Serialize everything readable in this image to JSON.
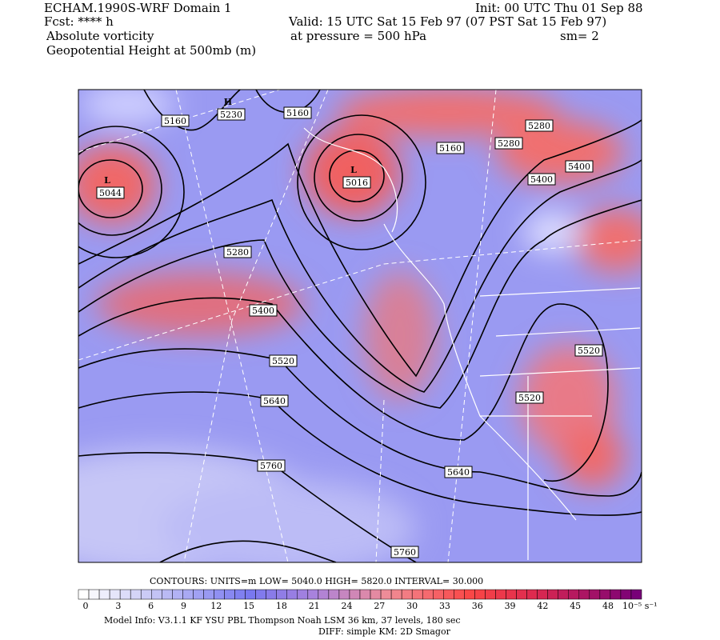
{
  "header": {
    "left": [
      "ECHAM.1990S-WRF Domain 1",
      "Fcst: **** h",
      "Absolute vorticity",
      "Geopotential Height at 500mb (m)"
    ],
    "right": [
      "Init: 00 UTC Thu 01 Sep 88",
      "Valid: 15 UTC Sat 15 Feb 97 (07 PST Sat 15 Feb 97)",
      "at pressure =  500 hPa",
      "sm= 2"
    ]
  },
  "map": {
    "centers": [
      {
        "kind": "L",
        "label": "5044"
      },
      {
        "kind": "H",
        "label": "5230"
      },
      {
        "kind": "L",
        "label": "5016"
      }
    ],
    "contour_labels": [
      "5160",
      "5160",
      "5160",
      "5280",
      "5280",
      "5400",
      "5400",
      "5280",
      "5400",
      "5520",
      "5520",
      "5520",
      "5640",
      "5640",
      "5760",
      "5760"
    ]
  },
  "footer": {
    "contours": "CONTOURS:  UNITS=m  LOW=   5040.0       HIGH=  5820.0       INTERVAL=    30.000",
    "colorbar_ticks": [
      0,
      3,
      6,
      9,
      12,
      15,
      18,
      21,
      24,
      27,
      30,
      33,
      36,
      39,
      42,
      45,
      48
    ],
    "colorbar_unit": "10⁻⁵ s⁻¹",
    "model_info": "Model Info: V3.1.1    KF         YSU PBL   Thompson     Noah LSM  36 km,    37 levels,  180 sec",
    "diff": "DIFF: simple KM: 2D Smagor"
  }
}
